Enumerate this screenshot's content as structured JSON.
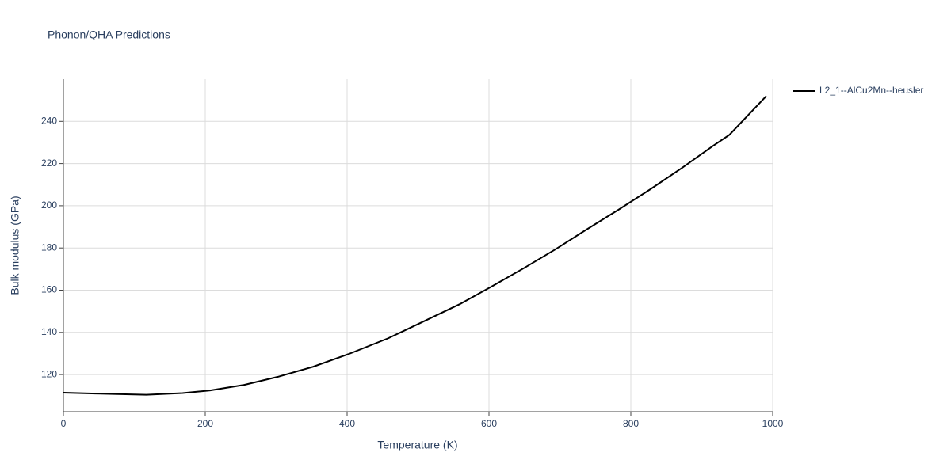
{
  "chart_data": {
    "type": "line",
    "title": "Phonon/QHA Predictions",
    "xlabel": "Temperature (K)",
    "ylabel": "Bulk modulus (GPa)",
    "x": [
      0,
      45,
      117,
      168,
      207,
      255,
      302,
      352,
      402,
      458,
      503,
      559,
      603,
      648,
      693,
      737,
      782,
      827,
      872,
      916,
      939,
      991
    ],
    "series": [
      {
        "name": "L2_1--AlCu2Mn--heusler",
        "color": "#000000",
        "values": [
          111.4,
          111.0,
          110.4,
          111.2,
          112.5,
          115.1,
          118.9,
          123.7,
          129.7,
          137.2,
          144.4,
          153.4,
          161.6,
          170.2,
          179.2,
          188.6,
          198.0,
          207.7,
          217.9,
          228.4,
          233.6,
          252.0
        ]
      }
    ],
    "xlim": [
      0,
      1000
    ],
    "xticks": [
      0,
      200,
      400,
      600,
      800,
      1000
    ],
    "ylim": [
      102.4,
      260
    ],
    "yticks": [
      120,
      140,
      160,
      180,
      200,
      220,
      240
    ],
    "grid": true,
    "legend": "right"
  }
}
